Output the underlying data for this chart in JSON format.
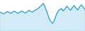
{
  "values": [
    55,
    52,
    50,
    53,
    57,
    54,
    51,
    55,
    58,
    54,
    51,
    55,
    58,
    55,
    52,
    56,
    60,
    57,
    55,
    59,
    62,
    65,
    70,
    75,
    80,
    68,
    55,
    38,
    28,
    22,
    30,
    45,
    57,
    62,
    65,
    58,
    65,
    72,
    66,
    60,
    68,
    74,
    67,
    61,
    70,
    76,
    69,
    62
  ],
  "line_color": "#2196c8",
  "fill_color": "#a8d8f0",
  "background_color": "#ffffff",
  "alpha_fill": 0.5,
  "ylim_min": 0,
  "ylim_max": 90
}
